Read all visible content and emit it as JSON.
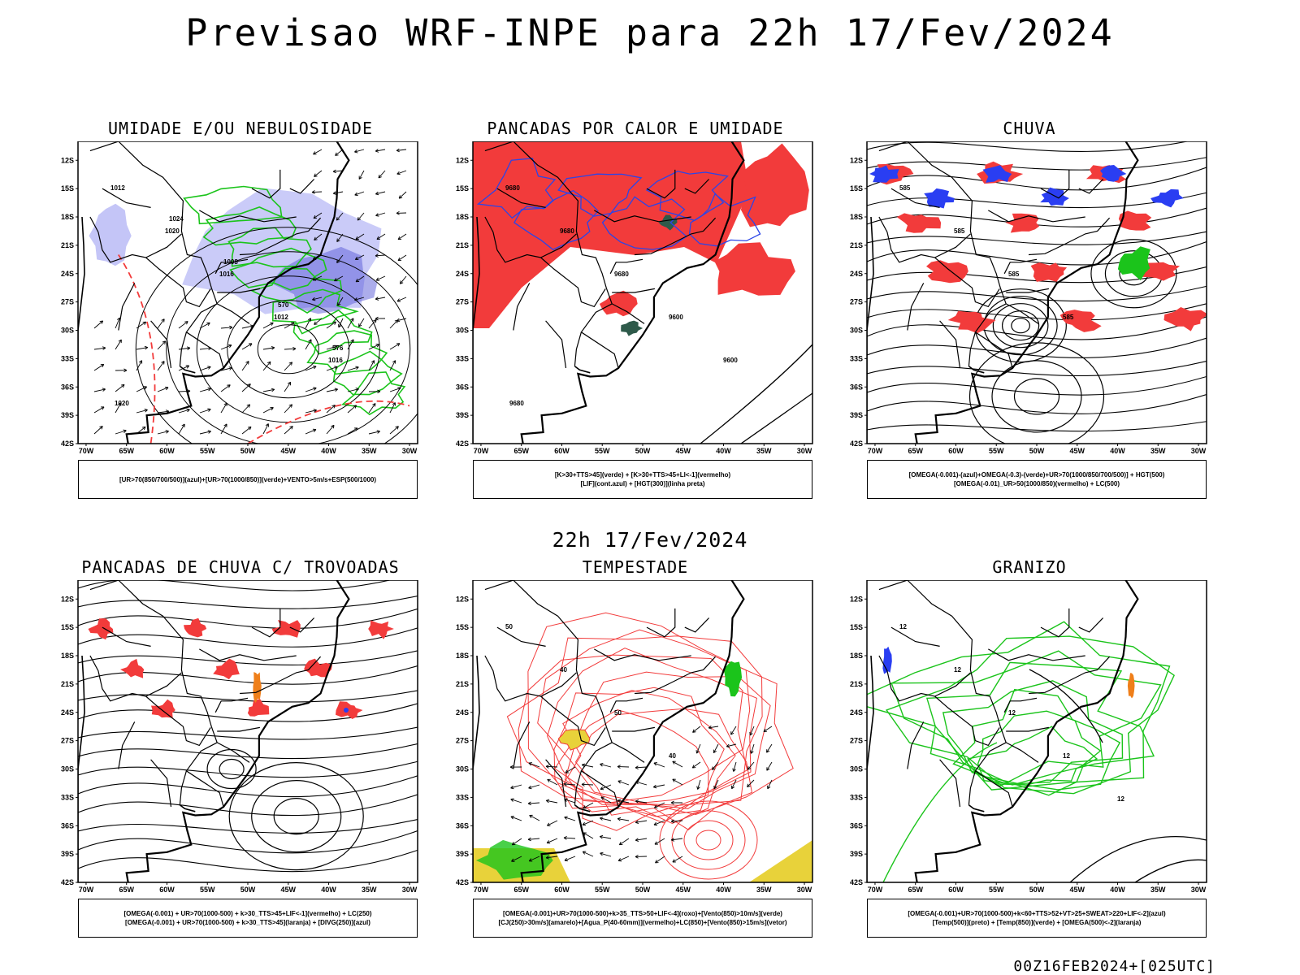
{
  "title": "Previsao WRF-INPE  para 22h 17/Fev/2024",
  "row2_title": "22h 17/Fev/2024",
  "footer": "00Z16FEB2024+[025UTC]",
  "lat_ticks": [
    "12S",
    "15S",
    "18S",
    "21S",
    "24S",
    "27S",
    "30S",
    "33S",
    "36S",
    "39S",
    "42S"
  ],
  "lon_ticks": [
    "70W",
    "65W",
    "60W",
    "55W",
    "50W",
    "45W",
    "40W",
    "35W",
    "30W"
  ],
  "panels": [
    {
      "title": "UMIDADE E/OU NEBULOSIDADE",
      "legend": [
        "[UR>70(850/700/500)](azul)+[UR>70(1000/850)](verde)+VENTO>5m/s+ESP(500/1000)"
      ],
      "contour_labels": [
        "1012",
        "1020",
        "1016",
        "1012",
        "1016",
        "1020",
        "1024",
        "1008",
        "570",
        "576"
      ],
      "fields": [
        "blue",
        "green",
        "black",
        "red-dashed",
        "vectors"
      ]
    },
    {
      "title": "PANCADAS POR CALOR E UMIDADE",
      "legend": [
        "[K>30+TTS>45](verde) + [K>30+TTS>45+LI<-1](vermelho)",
        "[LIF](cont.azul) + [HGT(300)](linha preta)"
      ],
      "contour_labels": [
        "9680",
        "9680",
        "9680",
        "9600",
        "9600",
        "9680"
      ],
      "fields": [
        "red",
        "blue",
        "black",
        "dark-green"
      ]
    },
    {
      "title": "CHUVA",
      "legend": [
        "[OMEGA(-0.001)-(azul)+OMEGA(-0.3)-(verde)+UR>70(1000/850/700/500)] + HGT(500)",
        "[OMEGA(-0.01)_UR>50(1000/850)(vermelho) + LC(500)"
      ],
      "contour_labels": [
        "585",
        "585",
        "585",
        "585"
      ],
      "fields": [
        "red",
        "blue",
        "green",
        "streamlines"
      ]
    },
    {
      "title": "PANCADAS DE CHUVA C/ TROVOADAS",
      "legend": [
        "[OMEGA(-0.001) + UR>70(1000-500) + k>30_TTS>45+LIF<-1](vermelho) + LC(250)",
        "[OMEGA(-0.001) + UR>70(1000-500) + k>30_TTS>45](laranja) + [DIVG(250)](azul)"
      ],
      "contour_labels": [],
      "fields": [
        "red",
        "streamlines",
        "orange",
        "blue"
      ]
    },
    {
      "title": "TEMPESTADE",
      "legend": [
        "[OMEGA(-0.001)+UR>70(1000-500)+k>35_TTS>50+LIF<-4](roxo)+[Vento(850)>10m/s](verde)",
        "[CJ(250)>30m/s](amarelo)+[Agua_P(40-60mm)](vermelho)+LC(850)+[Vento(850)>15m/s](vetor)"
      ],
      "contour_labels": [
        "50",
        "40",
        "50",
        "40"
      ],
      "fields": [
        "red-contours",
        "yellow",
        "green",
        "vectors"
      ]
    },
    {
      "title": "GRANIZO",
      "legend": [
        "[OMEGA(-0.001)+UR>70(1000-500)+k<60+TTS>52+VT>25+SWEAT>220+LIF<-2](azul)",
        "[Temp(500)](preto) + [Temp(850)](verde) + [OMEGA(500)<-2](laranja)"
      ],
      "contour_labels": [
        "12",
        "12",
        "12",
        "12",
        "12"
      ],
      "fields": [
        "green-contours",
        "black",
        "orange",
        "blue"
      ]
    }
  ],
  "colors": {
    "blue": "#8a8cf0",
    "green": "#1bc41b",
    "red": "#f23b3b",
    "dark_green": "#2e5a4a",
    "yellow": "#e8d23a",
    "black": "#000000",
    "orange": "#ef7f1a"
  }
}
